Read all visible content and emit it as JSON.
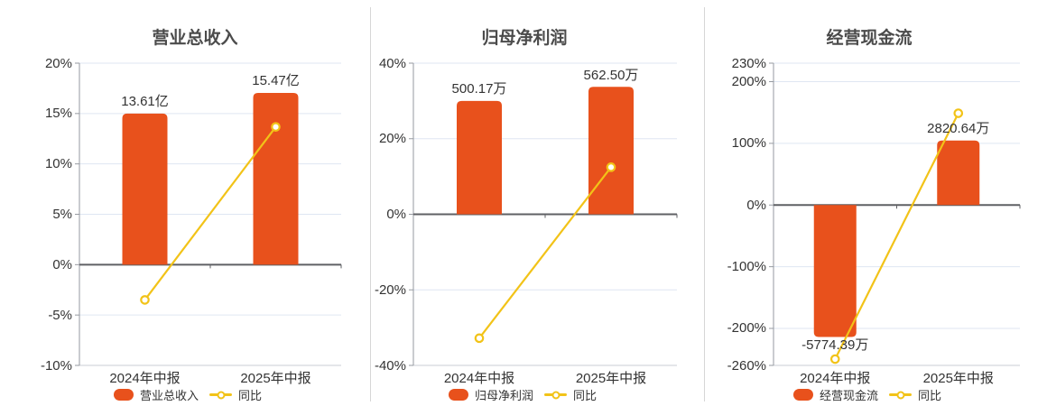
{
  "page": {
    "background": "#ffffff"
  },
  "colors": {
    "bar": "#E8511C",
    "line": "#F2C318",
    "grid": "#DFE6F2",
    "grid_bottom": "#C9CDD4",
    "zero_axis": "#5F6064",
    "axis": "#969AA1",
    "text": "#333333",
    "title": "#4B4B4B"
  },
  "chart_data": [
    {
      "type": "bar+line",
      "title": "营业总收入",
      "categories": [
        "2024年中报",
        "2025年中报"
      ],
      "bar_series": {
        "name": "营业总收入",
        "value_labels": [
          "13.61亿",
          "15.47亿"
        ],
        "drawn_pct": [
          15.0,
          17.05
        ],
        "label_position": [
          "above",
          "above"
        ]
      },
      "line_series": {
        "name": "同比",
        "values_pct": [
          -3.5,
          13.67
        ]
      },
      "y_axis": {
        "unit": "%",
        "ticks": [
          20,
          15,
          10,
          5,
          0,
          -5,
          -10
        ],
        "max": 20,
        "min": -10
      },
      "legend_position": "bottom"
    },
    {
      "type": "bar+line",
      "title": "归母净利润",
      "categories": [
        "2024年中报",
        "2025年中报"
      ],
      "bar_series": {
        "name": "归母净利润",
        "value_labels": [
          "500.17万",
          "562.50万"
        ],
        "drawn_pct": [
          30.0,
          33.74
        ],
        "label_position": [
          "above",
          "above"
        ]
      },
      "line_series": {
        "name": "同比",
        "values_pct": [
          -32.8,
          12.46
        ]
      },
      "y_axis": {
        "unit": "%",
        "ticks": [
          40,
          20,
          0,
          -20,
          -40
        ],
        "max": 40,
        "min": -40
      },
      "legend_position": "bottom"
    },
    {
      "type": "bar+line",
      "title": "经营现金流",
      "categories": [
        "2024年中报",
        "2025年中报"
      ],
      "bar_series": {
        "name": "经营现金流",
        "value_labels": [
          "-5774.39万",
          "2820.64万"
        ],
        "drawn_pct": [
          -214.0,
          104.6
        ],
        "label_position": [
          "below",
          "above"
        ]
      },
      "line_series": {
        "name": "同比",
        "values_pct": [
          -249.8,
          148.8
        ]
      },
      "y_axis": {
        "unit": "%",
        "ticks": [
          230,
          200,
          100,
          0,
          -100,
          -200,
          -260
        ],
        "max": 230,
        "min": -260
      },
      "legend_position": "bottom"
    }
  ]
}
